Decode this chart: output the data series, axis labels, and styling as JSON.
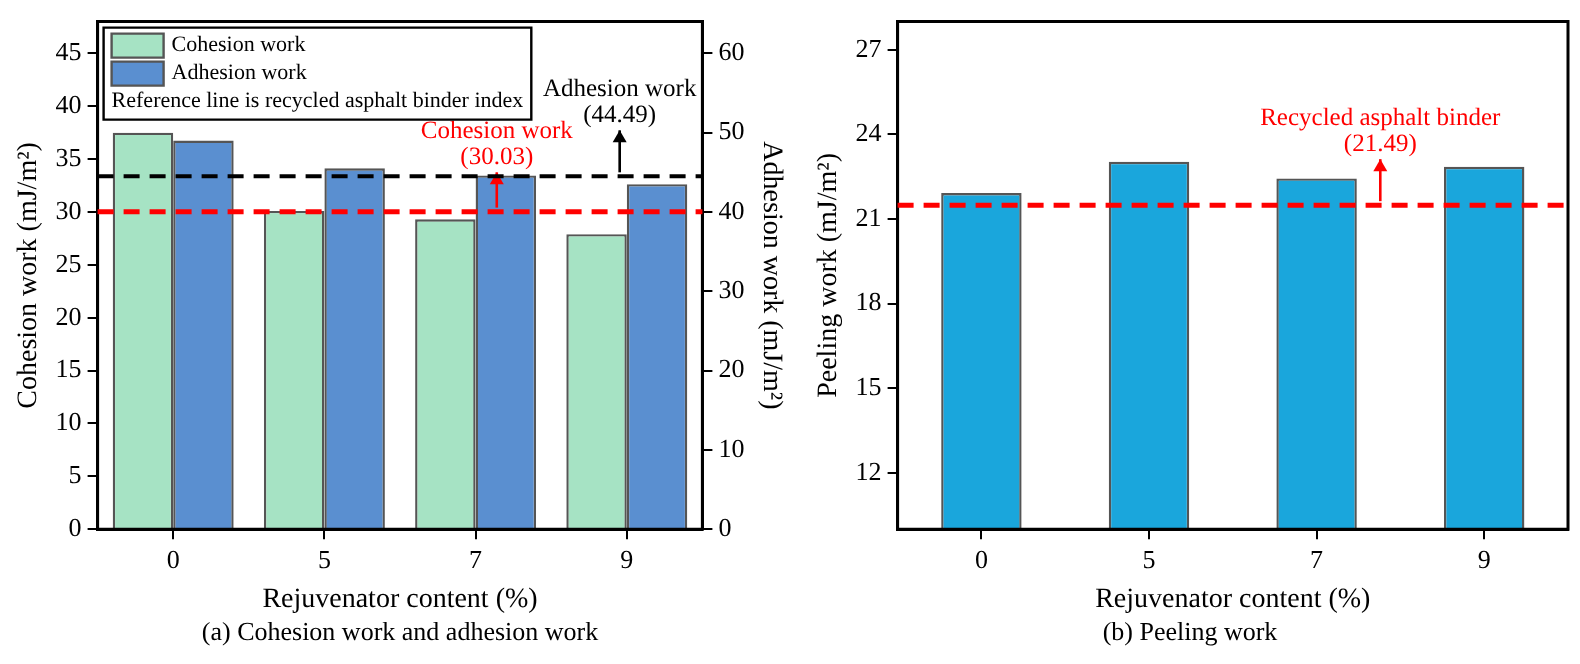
{
  "chart_data": [
    {
      "type": "bar",
      "title": "(a) Cohesion work and adhesion work",
      "xlabel": "Rejuvenator content (%)",
      "ylabel": "Cohesion work (mJ/m²)",
      "y2label": "Adhesion work (mJ/m²)",
      "categories": [
        "0",
        "5",
        "7",
        "9"
      ],
      "series": [
        {
          "name": "Cohesion work",
          "color": "#a6e3c4",
          "values": [
            37.5,
            30.1,
            29.3,
            27.9
          ]
        },
        {
          "name": "Adhesion work",
          "color": "#5a8fd0",
          "axis": "y2",
          "values": [
            49.0,
            45.5,
            44.6,
            43.5
          ]
        }
      ],
      "ylim": [
        0,
        48
      ],
      "yticks": [
        0,
        5,
        10,
        15,
        20,
        25,
        30,
        35,
        40,
        45
      ],
      "y2lim": [
        0,
        64
      ],
      "y2ticks": [
        0,
        10,
        20,
        30,
        40,
        50,
        60
      ],
      "ref_lines": [
        {
          "axis": "y",
          "value": 30.03,
          "label": "Cohesion work (30.03)",
          "color": "#ff0000",
          "line_style": "dashed"
        },
        {
          "axis": "y2",
          "value": 44.49,
          "label": "Adhesion work (44.49)",
          "color": "#000000",
          "line_style": "dashed"
        }
      ],
      "annotations": [
        "Reference line is recycled asphalt binder index"
      ],
      "legend": "top left",
      "grid": false
    },
    {
      "type": "bar",
      "title": "(b) Peeling work",
      "xlabel": "Rejuvenator content (%)",
      "ylabel": "Peeling work (mJ/m²)",
      "categories": [
        "0",
        "5",
        "7",
        "9"
      ],
      "values": [
        21.92,
        23.03,
        22.44,
        22.85
      ],
      "color": "#1aa6dc",
      "ylim": [
        10,
        28
      ],
      "yticks": [
        12,
        15,
        18,
        21,
        24,
        27
      ],
      "ref_lines": [
        {
          "axis": "y",
          "value": 21.49,
          "label": "Recycled asphalt binder (21.49)",
          "color": "#ff0000",
          "line_style": "dashed"
        }
      ],
      "grid": false
    }
  ]
}
